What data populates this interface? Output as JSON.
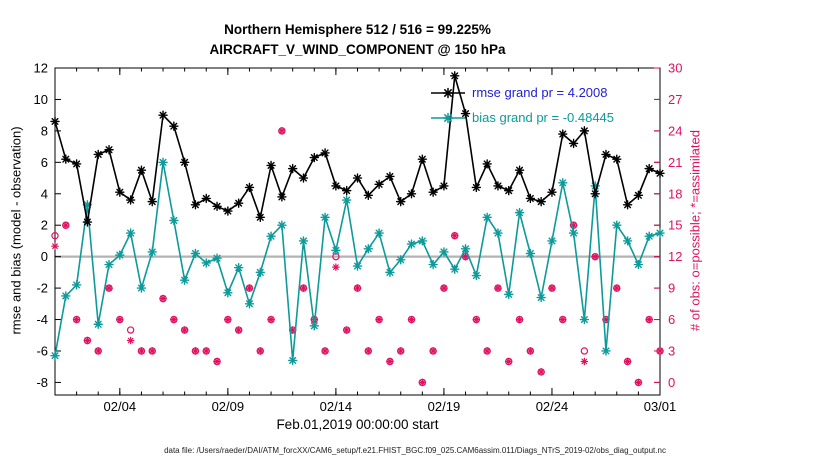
{
  "figure": {
    "title_line1": "Northern Hemisphere 512 / 516 = 99.225%",
    "title_line2": "AIRCRAFT_V_WIND_COMPONENT @ 150 hPa",
    "xlabel": "Feb.01,2019 00:00:00 start",
    "ylabel_left": "rmse and bias (model - observation)",
    "ylabel_right": "# of obs: o=possible; *=assimilated",
    "footer": "data file: /Users/raeder/DAI/ATM_forcXX/CAM6_setup/f.e21.FHIST_BGC.f09_025.CAM6assim.011/Diags_NTrS_2019-02/obs_diag_output.nc"
  },
  "legend": {
    "entries": [
      {
        "label": "rmse grand pr = 4.2008",
        "text_color": "#2121d1",
        "line_color": "#000000",
        "marker": "asterisk"
      },
      {
        "label": "bias grand pr = -0.48445",
        "text_color": "#0d9a9a",
        "line_color": "#0d9a9a",
        "marker": "asterisk"
      }
    ]
  },
  "colors": {
    "rmse": "#000000",
    "bias": "#0d9a9a",
    "obs": "#e0115f",
    "zero_line": "#b3b3b3",
    "axis": "#000000"
  },
  "chart_data": {
    "type": "line",
    "title": "Northern Hemisphere 512 / 516 = 99.225% | AIRCRAFT_V_WIND_COMPONENT @ 150 hPa",
    "xlabel": "Feb.01,2019 00:00:00 start",
    "ylabel_left": "rmse and bias (model - observation)",
    "ylabel_right": "# of obs: o=possible; *=assimilated",
    "xlim": [
      1,
      29
    ],
    "ylim_left": [
      -8.8,
      12
    ],
    "left_ticks": {
      "from": -8,
      "to": 12,
      "step": 2
    },
    "right_ticks": {
      "from": 0,
      "to": 30,
      "step": 3
    },
    "x_major_ticks": [
      4,
      9,
      14,
      19,
      24,
      29
    ],
    "x_tick_labels": [
      "02/04",
      "02/09",
      "02/14",
      "02/19",
      "02/24",
      "03/01"
    ],
    "x_minor_step": 1,
    "x": [
      1,
      1.5,
      2,
      2.5,
      3,
      3.5,
      4,
      4.5,
      5,
      5.5,
      6,
      6.5,
      7,
      7.5,
      8,
      8.5,
      9,
      9.5,
      10,
      10.5,
      11,
      11.5,
      12,
      12.5,
      13,
      13.5,
      14,
      14.5,
      15,
      15.5,
      16,
      16.5,
      17,
      17.5,
      18,
      18.5,
      19,
      19.5,
      20,
      20.5,
      21,
      21.5,
      22,
      22.5,
      23,
      23.5,
      24,
      24.5,
      25,
      25.5,
      26,
      26.5,
      27,
      27.5,
      28,
      28.5,
      29
    ],
    "series": [
      {
        "name": "rmse",
        "axis": "left",
        "color": "#000000",
        "marker": "asterisk",
        "line": true,
        "values": [
          8.6,
          6.2,
          5.9,
          2.2,
          6.5,
          6.8,
          4.1,
          3.6,
          5.5,
          3.5,
          9.0,
          8.3,
          6.0,
          3.3,
          3.7,
          3.2,
          2.9,
          3.4,
          4.4,
          2.5,
          5.8,
          3.8,
          5.6,
          5.0,
          6.3,
          6.6,
          4.5,
          4.2,
          5.0,
          3.9,
          4.6,
          5.1,
          3.5,
          4.0,
          6.2,
          4.1,
          4.5,
          11.5,
          9.1,
          4.4,
          5.9,
          4.5,
          4.2,
          5.5,
          3.7,
          3.5,
          4.1,
          7.8,
          7.2,
          8.0,
          4.0,
          6.5,
          6.2,
          3.3,
          3.9,
          5.6,
          5.3
        ]
      },
      {
        "name": "bias",
        "axis": "left",
        "color": "#0d9a9a",
        "marker": "asterisk",
        "line": true,
        "values": [
          -6.3,
          -2.5,
          -1.8,
          3.3,
          -4.3,
          -0.5,
          0.1,
          1.5,
          -2.0,
          0.3,
          6.0,
          2.3,
          -1.5,
          0.2,
          -0.4,
          -0.1,
          -2.3,
          -0.7,
          -3.0,
          -1.0,
          1.3,
          2.0,
          -6.6,
          1.0,
          -4.4,
          2.5,
          0.4,
          3.6,
          -0.6,
          0.5,
          1.5,
          -1.0,
          -0.2,
          0.8,
          1.0,
          -0.5,
          0.3,
          -0.8,
          0.5,
          -1.2,
          2.5,
          1.5,
          -2.4,
          2.8,
          0.2,
          -2.6,
          1.0,
          4.7,
          1.5,
          -4.0,
          4.5,
          -6.0,
          2.0,
          1.0,
          -0.5,
          1.3,
          1.5
        ]
      },
      {
        "name": "obs_possible",
        "axis": "right",
        "color": "#e0115f",
        "marker": "circle",
        "line": false,
        "values": [
          14,
          15,
          6,
          4,
          3,
          9,
          6,
          5,
          3,
          3,
          8,
          6,
          5,
          3,
          3,
          2,
          6,
          5,
          9,
          3,
          6,
          24,
          5,
          9,
          6,
          3,
          12,
          5,
          9,
          3,
          6,
          2,
          3,
          6,
          0,
          3,
          9,
          14,
          12,
          6,
          3,
          9,
          2,
          6,
          3,
          1,
          9,
          6,
          15,
          3,
          12,
          6,
          9,
          2,
          0,
          6,
          3
        ]
      },
      {
        "name": "obs_assimilated",
        "axis": "right",
        "color": "#e0115f",
        "marker": "asterisk",
        "line": false,
        "values": [
          13,
          15,
          6,
          4,
          3,
          9,
          6,
          4,
          3,
          3,
          8,
          6,
          5,
          3,
          3,
          2,
          6,
          5,
          9,
          3,
          6,
          24,
          5,
          9,
          6,
          3,
          11,
          5,
          9,
          3,
          6,
          2,
          3,
          6,
          0,
          3,
          9,
          14,
          12,
          6,
          3,
          9,
          2,
          6,
          3,
          1,
          9,
          6,
          15,
          2,
          12,
          6,
          9,
          2,
          0,
          6,
          3
        ]
      }
    ]
  }
}
